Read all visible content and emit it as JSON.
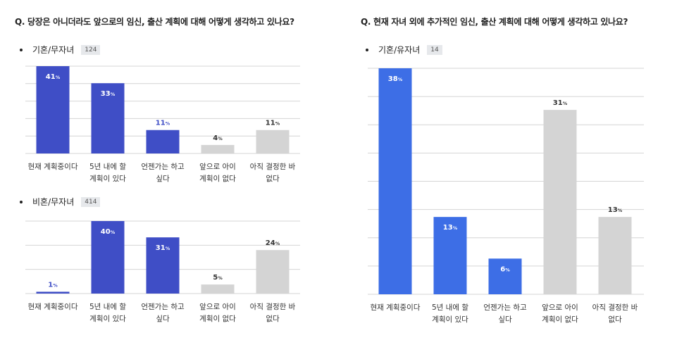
{
  "left_panel": {
    "question": "Q. 당장은 아니더라도 앞으로의 임신, 출산 계획에 대해 어떻게 생각하고 있나요?",
    "groups": [
      {
        "label": "기혼/무자녀",
        "count": "124"
      },
      {
        "label": "비혼/무자녀",
        "count": "414"
      }
    ]
  },
  "right_panel": {
    "question": "Q. 현재 자녀 외에 추가적인 임신, 출산 계획에 대해 어떻게 생각하고 있나요?",
    "groups": [
      {
        "label": "기혼/유자녀",
        "count": "14"
      }
    ]
  },
  "colors": {
    "dark_blue": "#3f4ec6",
    "bright_blue": "#3d6ee6",
    "gray": "#d4d4d4",
    "label_white": "#ffffff",
    "label_blue": "#3f4ec6",
    "label_dark": "#333333"
  },
  "percent_suffix": "%",
  "chart_data": [
    {
      "type": "bar",
      "group": "기혼/무자녀",
      "categories": [
        [
          "현재 계획중이다"
        ],
        [
          "5년 내에 할",
          "계획이 있다"
        ],
        [
          "언젠가는 하고",
          "싶다"
        ],
        [
          "앞으로 아이",
          "계획이 없다"
        ],
        [
          "아직 결정한 바",
          "없다"
        ]
      ],
      "values": [
        41,
        33,
        11,
        4,
        11
      ],
      "bar_colors": [
        "dark_blue",
        "dark_blue",
        "dark_blue",
        "gray",
        "gray"
      ],
      "label_colors": [
        "label_white",
        "label_white",
        "label_blue",
        "label_dark",
        "label_dark"
      ],
      "ylim": [
        0,
        41
      ],
      "grid": true
    },
    {
      "type": "bar",
      "group": "비혼/무자녀",
      "categories": [
        [
          "현재 계획중이다"
        ],
        [
          "5년 내에 할",
          "계획이 있다"
        ],
        [
          "언젠가는 하고",
          "싶다"
        ],
        [
          "앞으로 아이",
          "계획이 없다"
        ],
        [
          "아직 결정한 바",
          "없다"
        ]
      ],
      "values": [
        1,
        40,
        31,
        5,
        24
      ],
      "bar_colors": [
        "dark_blue",
        "dark_blue",
        "dark_blue",
        "gray",
        "gray"
      ],
      "label_colors": [
        "label_blue",
        "label_white",
        "label_white",
        "label_dark",
        "label_dark"
      ],
      "ylim": [
        0,
        40
      ],
      "grid": true
    },
    {
      "type": "bar",
      "group": "기혼/유자녀",
      "categories": [
        [
          "현재 계획중이다"
        ],
        [
          "5년 내에 할",
          "계획이 있다"
        ],
        [
          "언젠가는 하고",
          "싶다"
        ],
        [
          "앞으로 아이",
          "계획이 없다"
        ],
        [
          "아직 결정한 바",
          "없다"
        ]
      ],
      "values": [
        38,
        13,
        6,
        31,
        13
      ],
      "bar_colors": [
        "bright_blue",
        "bright_blue",
        "bright_blue",
        "gray",
        "gray"
      ],
      "label_colors": [
        "label_white",
        "label_white",
        "label_white",
        "label_dark",
        "label_dark"
      ],
      "ylim": [
        0,
        38
      ],
      "grid": true
    }
  ]
}
